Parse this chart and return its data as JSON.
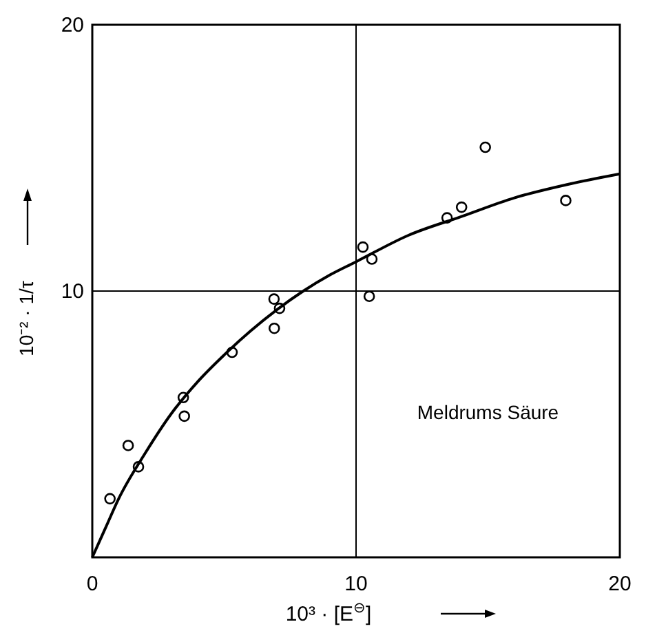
{
  "chart_data": {
    "type": "scatter",
    "xlabel": "10³ · [E$^{⊖}$]",
    "ylabel": "10⁻² · 1/τ",
    "xlim": [
      0,
      20
    ],
    "ylim": [
      0,
      20
    ],
    "xticks": [
      0,
      10,
      20
    ],
    "yticks": [
      {
        "value": 0,
        "label": null
      },
      10,
      20
    ],
    "grid": true,
    "annotations": [
      "Meldrums Säure"
    ],
    "series": [
      {
        "color": "#000000",
        "marker": "circle",
        "x": [
          0.67,
          1.36,
          1.75,
          3.45,
          3.49,
          5.3,
          6.89,
          7.1,
          6.9,
          10.26,
          10.6,
          10.5,
          13.45,
          14.0,
          14.9,
          17.95
        ],
        "values": [
          2.2,
          4.2,
          3.4,
          6.0,
          5.3,
          7.7,
          9.7,
          9.35,
          8.6,
          11.65,
          11.2,
          9.8,
          12.75,
          13.15,
          15.4,
          13.4
        ]
      },
      {
        "type": "line",
        "color": "#000000",
        "line_style": "solid",
        "x": [
          0,
          0.5,
          1,
          2,
          3,
          4,
          5,
          6,
          7,
          8,
          9,
          10,
          12,
          14,
          16,
          18,
          20
        ],
        "values": [
          0,
          1.1,
          2.2,
          3.9,
          5.4,
          6.6,
          7.6,
          8.5,
          9.3,
          10.0,
          10.6,
          11.1,
          12.1,
          12.8,
          13.5,
          14.0,
          14.4
        ]
      }
    ]
  }
}
